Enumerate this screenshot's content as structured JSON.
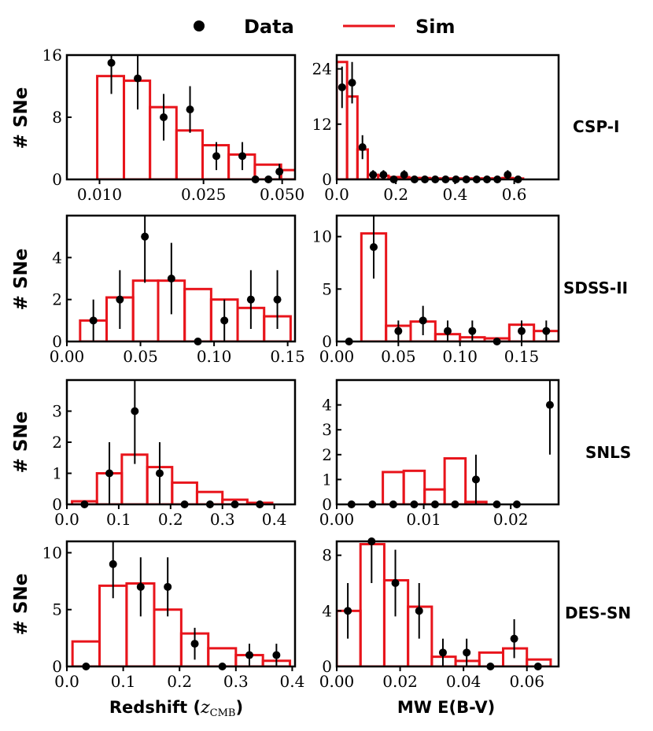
{
  "legend": {
    "data_label": "Data",
    "sim_label": "Sim"
  },
  "colors": {
    "sim": "#e8141b",
    "data": "#000000",
    "axes": "#000000"
  },
  "row_labels": [
    "CSP-I",
    "SDSS-II",
    "SNLS",
    "DES-SN"
  ],
  "ylabel": "# SNe",
  "xlabels": {
    "left_text": "Redshift (",
    "left_math": "z",
    "left_sub": "CMB",
    "left_close": ")",
    "right": "MW E(B-V)"
  },
  "chart_data": [
    {
      "type": "bar",
      "panel": "CSP-I redshift",
      "scale": "log",
      "row": 0,
      "col": 0,
      "xlim": [
        0.0075,
        0.056
      ],
      "ylim": [
        0,
        16
      ],
      "xticks": [
        0.01,
        0.025,
        0.05
      ],
      "xtick_labels": [
        "0.010",
        "0.025",
        "0.050"
      ],
      "yticks": [
        0,
        8,
        16
      ],
      "ytick_labels": [
        "0",
        "8",
        "16"
      ],
      "sim_edges": [
        0.0098,
        0.0124,
        0.0156,
        0.0197,
        0.0248,
        0.0312,
        0.0393,
        0.0495,
        0.06
      ],
      "sim_values": [
        13.3,
        12.7,
        9.3,
        6.3,
        4.4,
        3.2,
        1.9,
        1.2
      ],
      "data_x": [
        0.0111,
        0.014,
        0.0176,
        0.0222,
        0.028,
        0.0352,
        0.0443,
        0.0488
      ],
      "data_y": [
        15,
        13,
        8,
        9,
        3,
        3,
        0,
        1
      ],
      "data_err": [
        4,
        4,
        3,
        3,
        1.8,
        1.8,
        0,
        1
      ],
      "data_err_lower": [
        4,
        4,
        3,
        3,
        1.8,
        1.8,
        0,
        1
      ],
      "extra_points": [
        {
          "x": 0.0395,
          "y": 0
        }
      ]
    },
    {
      "type": "bar",
      "panel": "CSP-I E(B-V)",
      "scale": "linear",
      "row": 0,
      "col": 1,
      "xlim": [
        0,
        0.75
      ],
      "ylim": [
        0,
        27
      ],
      "xticks": [
        0.0,
        0.2,
        0.4,
        0.6
      ],
      "xtick_labels": [
        "0.0",
        "0.2",
        "0.4",
        "0.6"
      ],
      "yticks": [
        0,
        12,
        24
      ],
      "ytick_labels": [
        "0",
        "12",
        "24"
      ],
      "sim_edges": [
        0.0,
        0.035,
        0.07,
        0.105,
        0.14,
        0.175,
        0.21,
        0.245,
        0.28,
        0.315,
        0.35,
        0.385,
        0.42,
        0.455,
        0.49,
        0.525,
        0.56,
        0.595,
        0.63
      ],
      "sim_values": [
        25.5,
        18,
        6.5,
        1,
        0.8,
        0.5,
        0.5,
        0.3,
        0.3,
        0.2,
        0.2,
        0.2,
        0.2,
        0.2,
        0.2,
        0.2,
        0.3,
        0.2
      ],
      "data_x": [
        0.018,
        0.052,
        0.087,
        0.123,
        0.158,
        0.193,
        0.228,
        0.263,
        0.298,
        0.333,
        0.368,
        0.403,
        0.438,
        0.473,
        0.508,
        0.543,
        0.578,
        0.613
      ],
      "data_y": [
        20,
        21,
        7,
        1,
        1,
        0,
        1,
        0,
        0,
        0,
        0,
        0,
        0,
        0,
        0,
        0,
        1,
        0
      ],
      "data_err": [
        4.5,
        4.5,
        2.6,
        1,
        1,
        0,
        1,
        0,
        0,
        0,
        0,
        0,
        0,
        0,
        0,
        0,
        1,
        0
      ]
    },
    {
      "type": "bar",
      "panel": "SDSS-II redshift",
      "scale": "linear",
      "row": 1,
      "col": 0,
      "xlim": [
        0,
        0.155
      ],
      "ylim": [
        0,
        6
      ],
      "xticks": [
        0.0,
        0.05,
        0.1,
        0.15
      ],
      "xtick_labels": [
        "0.00",
        "0.05",
        "0.10",
        "0.15"
      ],
      "yticks": [
        0,
        2,
        4
      ],
      "ytick_labels": [
        "0",
        "2",
        "4"
      ],
      "sim_edges": [
        0.009,
        0.027,
        0.045,
        0.062,
        0.08,
        0.098,
        0.116,
        0.134,
        0.152
      ],
      "sim_values": [
        1.0,
        2.1,
        2.9,
        2.9,
        2.5,
        2.0,
        1.6,
        1.2
      ],
      "data_x": [
        0.018,
        0.036,
        0.053,
        0.071,
        0.089,
        0.107,
        0.125,
        0.143
      ],
      "data_y": [
        1,
        2,
        5,
        3,
        0,
        1,
        2,
        2
      ],
      "data_err": [
        1,
        1.4,
        2.2,
        1.7,
        0,
        1,
        1.4,
        1.4
      ]
    },
    {
      "type": "bar",
      "panel": "SDSS-II E(B-V)",
      "scale": "linear",
      "row": 1,
      "col": 1,
      "xlim": [
        0,
        0.18
      ],
      "ylim": [
        0,
        12
      ],
      "xticks": [
        0.0,
        0.05,
        0.1,
        0.15
      ],
      "xtick_labels": [
        "0.00",
        "0.05",
        "0.10",
        "0.15"
      ],
      "yticks": [
        0,
        5,
        10
      ],
      "ytick_labels": [
        "0",
        "5",
        "10"
      ],
      "sim_edges": [
        0.0,
        0.02,
        0.04,
        0.06,
        0.08,
        0.1,
        0.12,
        0.14,
        0.16,
        0.18
      ],
      "sim_values": [
        0,
        10.3,
        1.5,
        1.9,
        0.7,
        0.4,
        0.3,
        1.6,
        1.0
      ],
      "data_x": [
        0.01,
        0.03,
        0.05,
        0.07,
        0.09,
        0.11,
        0.13,
        0.15,
        0.17
      ],
      "data_y": [
        0,
        9,
        1,
        2,
        1,
        1,
        0,
        1,
        1
      ],
      "data_err": [
        0,
        3,
        1,
        1.4,
        1,
        1,
        0,
        1,
        1
      ]
    },
    {
      "type": "bar",
      "panel": "SNLS redshift",
      "scale": "linear",
      "row": 2,
      "col": 0,
      "xlim": [
        0,
        0.44
      ],
      "ylim": [
        0,
        4
      ],
      "xticks": [
        0.0,
        0.1,
        0.2,
        0.3,
        0.4
      ],
      "xtick_labels": [
        "0.0",
        "0.1",
        "0.2",
        "0.3",
        "0.4"
      ],
      "yticks": [
        0,
        1,
        2,
        3
      ],
      "ytick_labels": [
        "0",
        "1",
        "2",
        "3"
      ],
      "sim_edges": [
        0.01,
        0.058,
        0.106,
        0.155,
        0.203,
        0.251,
        0.3,
        0.348,
        0.396
      ],
      "sim_values": [
        0.1,
        1.0,
        1.6,
        1.2,
        0.7,
        0.4,
        0.15,
        0.05
      ],
      "data_x": [
        0.034,
        0.082,
        0.131,
        0.179,
        0.227,
        0.276,
        0.324,
        0.372
      ],
      "data_y": [
        0,
        1,
        3,
        1,
        0,
        0,
        0,
        0
      ],
      "data_err": [
        0,
        1,
        1.7,
        1,
        0,
        0,
        0,
        0
      ]
    },
    {
      "type": "bar",
      "panel": "SNLS E(B-V)",
      "scale": "linear",
      "row": 2,
      "col": 1,
      "xlim": [
        0,
        0.0255
      ],
      "ylim": [
        0,
        5
      ],
      "xticks": [
        0.0,
        0.01,
        0.02
      ],
      "xtick_labels": [
        "0.00",
        "0.01",
        "0.02"
      ],
      "yticks": [
        0,
        1,
        2,
        3,
        4
      ],
      "ytick_labels": [
        "0",
        "1",
        "2",
        "3",
        "4"
      ],
      "sim_edges": [
        0.0006,
        0.0029,
        0.0053,
        0.0077,
        0.0101,
        0.0124,
        0.0148,
        0.0172,
        0.0196,
        0.022
      ],
      "sim_values": [
        0,
        0,
        1.3,
        1.35,
        0.6,
        1.85,
        0.1,
        0,
        0
      ],
      "data_x": [
        0.0017,
        0.0041,
        0.0065,
        0.0089,
        0.0113,
        0.0136,
        0.016,
        0.0184,
        0.0207,
        0.0245
      ],
      "data_y": [
        0,
        0,
        0,
        0,
        0,
        0,
        1,
        0,
        0,
        4
      ],
      "data_err": [
        0,
        0,
        0,
        0,
        0,
        0,
        1,
        0,
        0,
        2
      ]
    },
    {
      "type": "bar",
      "panel": "DES-SN redshift",
      "scale": "linear",
      "row": 3,
      "col": 0,
      "xlim": [
        0,
        0.405
      ],
      "ylim": [
        0,
        11
      ],
      "xticks": [
        0.0,
        0.1,
        0.2,
        0.3,
        0.4
      ],
      "xtick_labels": [
        "0.0",
        "0.1",
        "0.2",
        "0.3",
        "0.4"
      ],
      "yticks": [
        0,
        5,
        10
      ],
      "ytick_labels": [
        "0",
        "5",
        "10"
      ],
      "sim_edges": [
        0.01,
        0.058,
        0.106,
        0.155,
        0.203,
        0.251,
        0.3,
        0.348,
        0.396
      ],
      "sim_values": [
        2.2,
        7.1,
        7.3,
        5.0,
        2.9,
        1.6,
        1.0,
        0.5
      ],
      "data_x": [
        0.034,
        0.082,
        0.131,
        0.179,
        0.227,
        0.276,
        0.324,
        0.372
      ],
      "data_y": [
        0,
        9,
        7,
        7,
        2,
        0,
        1,
        1
      ],
      "data_err": [
        0,
        3,
        2.6,
        2.6,
        1.4,
        0,
        1,
        1
      ]
    },
    {
      "type": "bar",
      "panel": "DES-SN E(B-V)",
      "scale": "linear",
      "row": 3,
      "col": 1,
      "xlim": [
        0,
        0.07
      ],
      "ylim": [
        0,
        9
      ],
      "xticks": [
        0.0,
        0.02,
        0.04,
        0.06
      ],
      "xtick_labels": [
        "0.00",
        "0.02",
        "0.04",
        "0.06"
      ],
      "yticks": [
        0,
        4,
        8
      ],
      "ytick_labels": [
        "0",
        "4",
        "8"
      ],
      "sim_edges": [
        0.0,
        0.0075,
        0.015,
        0.0225,
        0.03,
        0.0375,
        0.045,
        0.0525,
        0.06,
        0.0675
      ],
      "sim_values": [
        4.0,
        8.8,
        6.2,
        4.3,
        0.7,
        0.4,
        1.0,
        1.3,
        0.5
      ],
      "data_x": [
        0.0035,
        0.011,
        0.0185,
        0.026,
        0.0335,
        0.041,
        0.0485,
        0.056,
        0.0635
      ],
      "data_y": [
        4,
        9,
        6,
        4,
        1,
        1,
        0,
        2,
        0
      ],
      "data_err": [
        2,
        3,
        2.4,
        2,
        1,
        1,
        0,
        1.4,
        0
      ]
    }
  ]
}
